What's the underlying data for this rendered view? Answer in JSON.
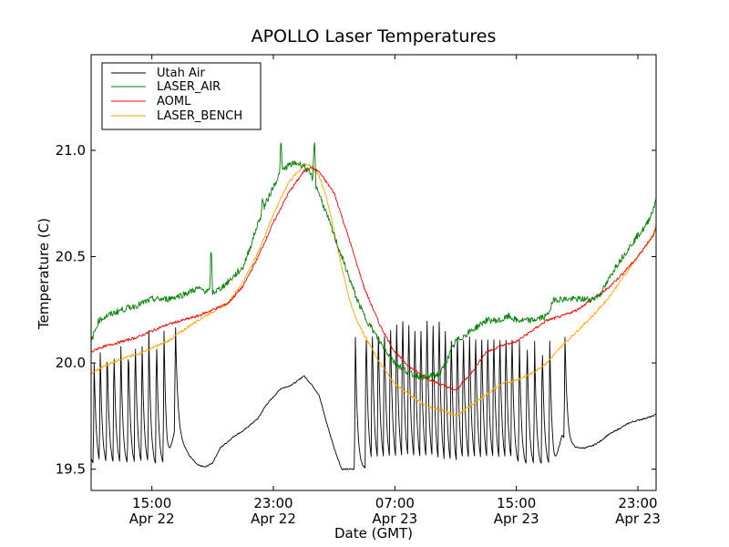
{
  "chart_data": {
    "type": "line",
    "title": "APOLLO Laser Temperatures",
    "xlabel": "Date (GMT)",
    "ylabel": "Temperature (C)",
    "x_units": "hours since Apr 22 11:00 GMT",
    "xlim": [
      0,
      37.2
    ],
    "ylim": [
      19.4,
      21.45
    ],
    "yticks": [
      19.5,
      20.0,
      20.5,
      21.0
    ],
    "ytick_labels": [
      "19.5",
      "20.0",
      "20.5",
      "21.0"
    ],
    "xticks": [
      {
        "x": 4,
        "time": "15:00",
        "date": "Apr 22"
      },
      {
        "x": 12,
        "time": "23:00",
        "date": "Apr 22"
      },
      {
        "x": 20,
        "time": "07:00",
        "date": "Apr 23"
      },
      {
        "x": 28,
        "time": "15:00",
        "date": "Apr 23"
      },
      {
        "x": 36,
        "time": "23:00",
        "date": "Apr 23"
      }
    ],
    "legend_position": "top-left",
    "series": [
      {
        "name": "Utah Air",
        "color": "#000000",
        "x": [
          0.0,
          0.2,
          0.5,
          1.0,
          1.5,
          2.0,
          2.5,
          3.0,
          3.5,
          4.0,
          4.5,
          5.0,
          5.5,
          6.0,
          6.5,
          7.0,
          7.5,
          8.0,
          8.5,
          9.0,
          9.5,
          10.0,
          10.5,
          11.0,
          11.5,
          12.0,
          12.5,
          13.0,
          13.5,
          14.0,
          14.5,
          15.0,
          15.5,
          16.0,
          16.5,
          17.0,
          17.5,
          18.0,
          18.5,
          19.0,
          19.5,
          20.0,
          20.5,
          21.0,
          21.5,
          22.0,
          22.5,
          23.0,
          23.5,
          24.0,
          24.5,
          25.0,
          25.5,
          26.0,
          26.5,
          27.0,
          27.5,
          28.0,
          28.5,
          29.0,
          29.5,
          30.0,
          30.5,
          31.0,
          31.5,
          32.0,
          32.5,
          33.0,
          33.5,
          34.0,
          34.5,
          35.0,
          35.5,
          36.0,
          36.5,
          37.0,
          37.2
        ],
        "y": [
          19.55,
          19.52,
          19.5,
          19.5,
          19.5,
          19.5,
          19.5,
          19.5,
          19.5,
          19.5,
          19.5,
          19.5,
          19.68,
          19.62,
          19.56,
          19.52,
          19.51,
          19.53,
          19.6,
          19.63,
          19.66,
          19.68,
          19.71,
          19.74,
          19.8,
          19.84,
          19.88,
          19.89,
          19.91,
          19.94,
          19.9,
          19.85,
          19.72,
          19.6,
          19.5,
          19.5,
          19.5,
          19.5,
          19.5,
          19.5,
          19.5,
          19.5,
          19.5,
          19.5,
          19.5,
          19.5,
          19.5,
          19.48,
          19.48,
          19.48,
          19.5,
          19.5,
          19.5,
          19.5,
          19.5,
          19.5,
          19.5,
          19.5,
          19.5,
          19.5,
          19.5,
          19.5,
          19.5,
          19.66,
          19.61,
          19.6,
          19.6,
          19.61,
          19.63,
          19.66,
          19.68,
          19.7,
          19.72,
          19.73,
          19.74,
          19.75,
          19.76
        ],
        "spikes": [
          {
            "x": 0.2,
            "peak": 20.0
          },
          {
            "x": 0.6,
            "peak": 20.05
          },
          {
            "x": 1.05,
            "peak": 20.1
          },
          {
            "x": 1.5,
            "peak": 20.1
          },
          {
            "x": 1.95,
            "peak": 20.12
          },
          {
            "x": 2.45,
            "peak": 20.12
          },
          {
            "x": 2.9,
            "peak": 20.15
          },
          {
            "x": 3.35,
            "peak": 20.12
          },
          {
            "x": 3.8,
            "peak": 20.15
          },
          {
            "x": 4.3,
            "peak": 20.15
          },
          {
            "x": 4.8,
            "peak": 20.15
          },
          {
            "x": 5.55,
            "peak": 20.2
          },
          {
            "x": 17.4,
            "peak": 20.12
          },
          {
            "x": 18.1,
            "peak": 20.2
          },
          {
            "x": 18.5,
            "peak": 20.22
          },
          {
            "x": 18.9,
            "peak": 20.22
          },
          {
            "x": 19.3,
            "peak": 20.22
          },
          {
            "x": 19.7,
            "peak": 20.25
          },
          {
            "x": 20.1,
            "peak": 20.28
          },
          {
            "x": 20.5,
            "peak": 20.3
          },
          {
            "x": 20.9,
            "peak": 20.28
          },
          {
            "x": 21.3,
            "peak": 20.25
          },
          {
            "x": 21.7,
            "peak": 20.25
          },
          {
            "x": 22.1,
            "peak": 20.3
          },
          {
            "x": 22.5,
            "peak": 20.28
          },
          {
            "x": 22.9,
            "peak": 20.3
          },
          {
            "x": 23.3,
            "peak": 20.25
          },
          {
            "x": 23.7,
            "peak": 20.2
          },
          {
            "x": 24.1,
            "peak": 20.22
          },
          {
            "x": 24.5,
            "peak": 20.2
          },
          {
            "x": 24.9,
            "peak": 20.22
          },
          {
            "x": 25.3,
            "peak": 20.2
          },
          {
            "x": 25.7,
            "peak": 20.2
          },
          {
            "x": 26.1,
            "peak": 20.2
          },
          {
            "x": 26.5,
            "peak": 20.2
          },
          {
            "x": 26.9,
            "peak": 20.2
          },
          {
            "x": 27.3,
            "peak": 20.2
          },
          {
            "x": 27.7,
            "peak": 20.2
          },
          {
            "x": 28.2,
            "peak": 20.1
          },
          {
            "x": 28.7,
            "peak": 20.15
          },
          {
            "x": 29.2,
            "peak": 20.1
          },
          {
            "x": 29.7,
            "peak": 20.12
          },
          {
            "x": 30.2,
            "peak": 20.1
          },
          {
            "x": 31.2,
            "peak": 20.12
          }
        ]
      },
      {
        "name": "LASER_AIR",
        "color": "#008000",
        "x": [
          0.0,
          0.5,
          1.0,
          2.0,
          3.0,
          4.0,
          5.0,
          6.0,
          7.0,
          8.0,
          8.5,
          9.0,
          10.0,
          10.5,
          11.0,
          11.5,
          12.0,
          12.5,
          13.0,
          13.5,
          14.0,
          14.5,
          15.0,
          16.0,
          17.0,
          17.5,
          18.0,
          19.0,
          20.0,
          21.0,
          22.0,
          23.0,
          24.0,
          25.0,
          26.0,
          27.0,
          27.5,
          28.0,
          29.0,
          30.0,
          30.5,
          31.0,
          32.0,
          33.0,
          33.5,
          34.0,
          34.5,
          35.0,
          35.5,
          36.0,
          36.5,
          37.0,
          37.2
        ],
        "y": [
          20.1,
          20.2,
          20.22,
          20.25,
          20.27,
          20.3,
          20.3,
          20.32,
          20.35,
          20.33,
          20.35,
          20.38,
          20.45,
          20.55,
          20.66,
          20.75,
          20.83,
          20.9,
          20.93,
          20.94,
          20.93,
          20.88,
          20.8,
          20.6,
          20.4,
          20.3,
          20.22,
          20.1,
          20.0,
          19.95,
          19.93,
          19.95,
          20.1,
          20.15,
          20.2,
          20.2,
          20.22,
          20.2,
          20.2,
          20.22,
          20.3,
          20.3,
          20.3,
          20.3,
          20.32,
          20.38,
          20.45,
          20.5,
          20.55,
          20.6,
          20.64,
          20.72,
          20.78
        ],
        "spikes": [
          {
            "x": 7.9,
            "peak": 20.55
          },
          {
            "x": 11.3,
            "peak": 20.78
          },
          {
            "x": 12.5,
            "peak": 21.05
          },
          {
            "x": 14.7,
            "peak": 21.08
          }
        ]
      },
      {
        "name": "AOML",
        "color": "#ff0000",
        "x": [
          0.0,
          0.5,
          1.0,
          2.0,
          3.0,
          4.0,
          5.0,
          6.0,
          7.0,
          8.0,
          9.0,
          10.0,
          11.0,
          12.0,
          13.0,
          14.0,
          14.5,
          15.0,
          16.0,
          17.0,
          18.0,
          19.0,
          20.0,
          21.0,
          22.0,
          23.0,
          24.0,
          25.0,
          26.0,
          27.0,
          28.0,
          29.0,
          30.0,
          31.0,
          32.0,
          33.0,
          34.0,
          35.0,
          36.0,
          37.0,
          37.2
        ],
        "y": [
          20.05,
          20.07,
          20.08,
          20.1,
          20.12,
          20.15,
          20.18,
          20.2,
          20.22,
          20.25,
          20.28,
          20.36,
          20.5,
          20.66,
          20.8,
          20.9,
          20.92,
          20.9,
          20.8,
          20.58,
          20.35,
          20.18,
          20.05,
          19.98,
          19.93,
          19.9,
          19.87,
          19.95,
          20.05,
          20.08,
          20.1,
          20.15,
          20.2,
          20.22,
          20.25,
          20.3,
          20.35,
          20.42,
          20.5,
          20.6,
          20.63
        ],
        "spikes": []
      },
      {
        "name": "LASER_BENCH",
        "color": "#ffa500",
        "x": [
          0.0,
          0.5,
          1.0,
          2.0,
          3.0,
          4.0,
          5.0,
          6.0,
          7.0,
          8.0,
          9.0,
          10.0,
          11.0,
          12.0,
          13.0,
          14.0,
          14.5,
          15.0,
          15.5,
          16.0,
          16.5,
          17.0,
          17.5,
          18.0,
          19.0,
          20.0,
          21.0,
          22.0,
          23.0,
          24.0,
          25.0,
          26.0,
          27.0,
          28.0,
          29.0,
          30.0,
          31.0,
          32.0,
          33.0,
          34.0,
          35.0,
          36.0,
          37.0,
          37.2
        ],
        "y": [
          19.95,
          19.97,
          19.99,
          20.02,
          20.04,
          20.07,
          20.1,
          20.15,
          20.2,
          20.24,
          20.28,
          20.38,
          20.52,
          20.7,
          20.85,
          20.93,
          20.93,
          20.88,
          20.78,
          20.62,
          20.45,
          20.3,
          20.2,
          20.13,
          20.0,
          19.9,
          19.85,
          19.8,
          19.78,
          19.75,
          19.8,
          19.85,
          19.9,
          19.92,
          19.95,
          20.0,
          20.08,
          20.15,
          20.22,
          20.3,
          20.4,
          20.5,
          20.6,
          20.65
        ],
        "spikes": []
      }
    ]
  }
}
